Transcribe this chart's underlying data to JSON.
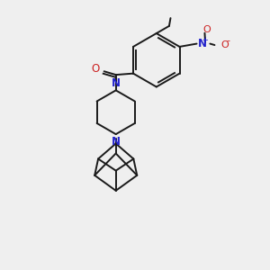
{
  "background_color": "#efefef",
  "bond_color": "#1a1a1a",
  "nitrogen_color": "#2222cc",
  "oxygen_color": "#cc2222",
  "figsize": [
    3.0,
    3.0
  ],
  "dpi": 100,
  "xlim": [
    0,
    10
  ],
  "ylim": [
    0,
    10
  ]
}
